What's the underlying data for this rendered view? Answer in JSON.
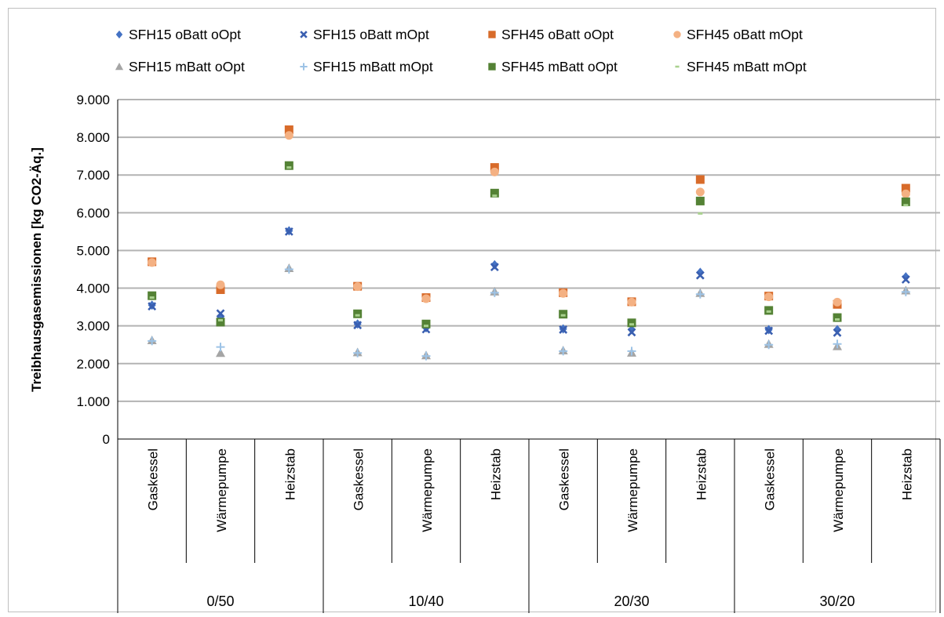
{
  "chart_data": {
    "type": "scatter",
    "title": "",
    "ylabel": "Treibhausgasemissionen [kg CO2-Äq.]",
    "xlabel": "",
    "ylim": [
      0,
      9000
    ],
    "y_ticks": [
      "0",
      "1.000",
      "2.000",
      "3.000",
      "4.000",
      "5.000",
      "6.000",
      "7.000",
      "8.000",
      "9.000"
    ],
    "y_tick_values": [
      0,
      1000,
      2000,
      3000,
      4000,
      5000,
      6000,
      7000,
      8000,
      9000
    ],
    "grid": "horizontal",
    "legend_position": "top",
    "groups": [
      "0/50",
      "10/40",
      "20/30",
      "30/20"
    ],
    "categories": [
      "Gaskessel",
      "Wärmepumpe",
      "Heizstab",
      "Gaskessel",
      "Wärmepumpe",
      "Heizstab",
      "Gaskessel",
      "Wärmepumpe",
      "Heizstab",
      "Gaskessel",
      "Wärmepumpe",
      "Heizstab"
    ],
    "series": [
      {
        "name": "SFH15 oBatt oOpt",
        "color": "#4472c4",
        "marker": "diamond",
        "values": [
          3550,
          3200,
          5520,
          3050,
          2950,
          4620,
          2920,
          2900,
          4420,
          2900,
          2900,
          4300
        ]
      },
      {
        "name": "SFH15 oBatt mOpt",
        "color": "#3a5fb0",
        "marker": "x",
        "values": [
          3520,
          3330,
          5500,
          3020,
          2910,
          4560,
          2900,
          2830,
          4340,
          2870,
          2820,
          4230
        ]
      },
      {
        "name": "SFH45 oBatt oOpt",
        "color": "#d86b2a",
        "marker": "square",
        "values": [
          4700,
          3960,
          8200,
          4050,
          3750,
          7200,
          3880,
          3640,
          6880,
          3790,
          3570,
          6650
        ]
      },
      {
        "name": "SFH45 oBatt mOpt",
        "color": "#f4b183",
        "marker": "circle",
        "values": [
          4680,
          4090,
          8050,
          4040,
          3720,
          7080,
          3860,
          3630,
          6550,
          3770,
          3630,
          6500
        ]
      },
      {
        "name": "SFH15 mBatt oOpt",
        "color": "#a5a5a5",
        "marker": "triangle",
        "values": [
          2620,
          2280,
          4530,
          2300,
          2220,
          3910,
          2350,
          2290,
          3870,
          2520,
          2460,
          3940
        ]
      },
      {
        "name": "SFH15 mBatt mOpt",
        "color": "#9dc3e6",
        "marker": "plus",
        "values": [
          2600,
          2440,
          4500,
          2280,
          2200,
          3880,
          2330,
          2330,
          3840,
          2500,
          2520,
          3900
        ]
      },
      {
        "name": "SFH45 mBatt oOpt",
        "color": "#548235",
        "marker": "square",
        "values": [
          3800,
          3100,
          7250,
          3320,
          3050,
          6520,
          3310,
          3080,
          6310,
          3410,
          3220,
          6290
        ]
      },
      {
        "name": "SFH45 mBatt mOpt",
        "color": "#a9d18e",
        "marker": "dash",
        "values": [
          3750,
          3150,
          7200,
          3280,
          3000,
          6450,
          3280,
          3040,
          5980,
          3380,
          3170,
          6200
        ]
      }
    ]
  }
}
